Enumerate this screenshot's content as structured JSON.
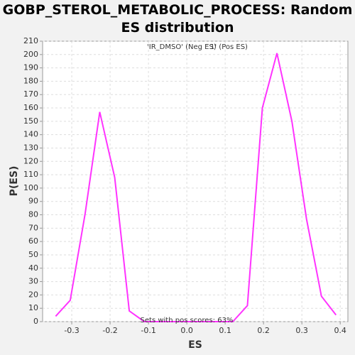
{
  "chart_data": {
    "type": "line",
    "title": "GOBP_STEROL_METABOLIC_PROCESS: Random ES distribution",
    "x_label": "ES",
    "y_label": "P(ES)",
    "legend": [
      {
        "label": "'IR_DMSO' (Neg ES)",
        "color": "#0000ff"
      },
      {
        "label": "1' (Pos ES)",
        "color": "#ff0000"
      }
    ],
    "annotation": "Sets with pos scores: 63%",
    "grid": true,
    "x": [
      -0.342,
      -0.304,
      -0.265,
      -0.227,
      -0.188,
      -0.15,
      -0.111,
      -0.073,
      -0.034,
      0.004,
      0.043,
      0.081,
      0.12,
      0.158,
      0.197,
      0.235,
      0.274,
      0.312,
      0.351,
      0.389
    ],
    "series": [
      {
        "color": "#ff33ff",
        "values": [
          4,
          16,
          81,
          157,
          108,
          8,
          0,
          0,
          0,
          0,
          0,
          0,
          0,
          12,
          160,
          201,
          150,
          77,
          19,
          5
        ]
      }
    ],
    "xlim": [
      -0.376,
      0.42
    ],
    "ylim": [
      0,
      210
    ],
    "xticks": [
      -0.3,
      -0.2,
      -0.1,
      {
        "value": 0,
        "label": "0.0"
      },
      0.1,
      0.2,
      0.3,
      0.4
    ],
    "yticks": [
      0,
      10,
      20,
      30,
      40,
      50,
      60,
      70,
      80,
      90,
      100,
      110,
      120,
      130,
      140,
      150,
      160,
      170,
      180,
      190,
      200,
      210
    ]
  }
}
